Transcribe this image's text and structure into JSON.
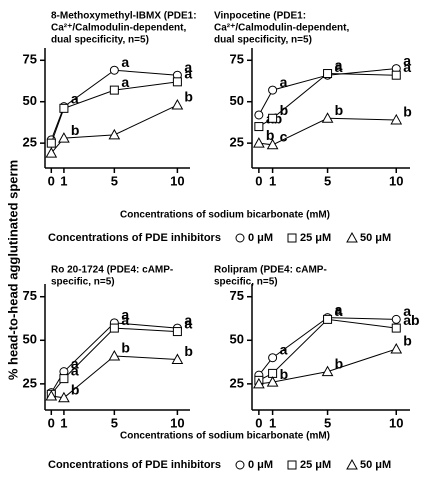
{
  "ylabel": "% head-to-head agglutinated sperm",
  "chart_data": [
    {
      "type": "line",
      "title_lines": [
        "8-Methoxymethyl-IBMX (PDE1:",
        "Ca²⁺/Calmodulin-dependent,",
        "dual specificity, n=5)"
      ],
      "x": [
        0,
        1,
        5,
        10
      ],
      "xlim": [
        -0.5,
        11
      ],
      "xticks": [
        0,
        1,
        5,
        10
      ],
      "ylim": [
        10,
        80
      ],
      "yticks": [
        25,
        50,
        75
      ],
      "xlabel": "Concentrations of sodium bicarbonate (mM)",
      "legend_title": "Concentrations of PDE inhibitors",
      "series": [
        {
          "name": "0 μM",
          "marker": "circle",
          "color": "#000000",
          "values": [
            27,
            47,
            69,
            66
          ],
          "letters": [
            null,
            "a",
            "a",
            "a"
          ]
        },
        {
          "name": "25 μM",
          "marker": "square",
          "color": "#000000",
          "values": [
            25,
            46,
            57,
            62
          ],
          "letters": [
            null,
            null,
            "a",
            "a"
          ]
        },
        {
          "name": "50 μM",
          "marker": "triangle",
          "color": "#000000",
          "values": [
            19,
            28,
            30,
            48
          ],
          "letters": [
            null,
            "b",
            null,
            "b"
          ]
        }
      ]
    },
    {
      "type": "line",
      "title_lines": [
        "Vinpocetine (PDE1:",
        "Ca²⁺/Calmodulin-dependent,",
        "dual specificity, n=5)"
      ],
      "x": [
        0,
        1,
        5,
        10
      ],
      "xlim": [
        -0.5,
        11
      ],
      "xticks": [
        0,
        1,
        5,
        10
      ],
      "ylim": [
        10,
        80
      ],
      "yticks": [
        25,
        50,
        75
      ],
      "series": [
        {
          "name": "0 μM",
          "marker": "circle",
          "color": "#000000",
          "values": [
            42,
            57,
            66,
            70
          ],
          "letters": [
            null,
            "a",
            "a",
            "a"
          ]
        },
        {
          "name": "25 μM",
          "marker": "square",
          "color": "#000000",
          "values": [
            35,
            40,
            67,
            66
          ],
          "letters": [
            "ab",
            "b",
            "a",
            "a"
          ]
        },
        {
          "name": "50 μM",
          "marker": "triangle",
          "color": "#000000",
          "values": [
            25,
            24,
            40,
            39
          ],
          "letters": [
            "b",
            "c",
            "b",
            "b"
          ]
        }
      ]
    },
    {
      "type": "line",
      "title_lines": [
        "Ro 20-1724 (PDE4: cAMP-",
        "specific,  n=5)"
      ],
      "x": [
        0,
        1,
        5,
        10
      ],
      "xlim": [
        -0.5,
        11
      ],
      "xticks": [
        0,
        1,
        5,
        10
      ],
      "ylim": [
        10,
        80
      ],
      "yticks": [
        25,
        50,
        75
      ],
      "xlabel": "Concentrations of sodium bicarbonate (mM)",
      "legend_title": "Concentrations of PDE inhibitors",
      "series": [
        {
          "name": "0 μM",
          "marker": "circle",
          "color": "#000000",
          "values": [
            20,
            32,
            60,
            57
          ],
          "letters": [
            null,
            "a",
            "a",
            "a"
          ]
        },
        {
          "name": "25 μM",
          "marker": "square",
          "color": "#000000",
          "values": [
            19,
            28,
            57,
            55
          ],
          "letters": [
            null,
            "a",
            "a",
            "a"
          ]
        },
        {
          "name": "50 μM",
          "marker": "triangle",
          "color": "#000000",
          "values": [
            18,
            17,
            41,
            39
          ],
          "letters": [
            null,
            "b",
            "b",
            "b"
          ]
        }
      ]
    },
    {
      "type": "line",
      "title_lines": [
        "Rolipram (PDE4: cAMP-",
        "specific, n=5)"
      ],
      "x": [
        0,
        1,
        5,
        10
      ],
      "xlim": [
        -0.5,
        11
      ],
      "xticks": [
        0,
        1,
        5,
        10
      ],
      "ylim": [
        10,
        80
      ],
      "yticks": [
        25,
        50,
        75
      ],
      "series": [
        {
          "name": "0 μM",
          "marker": "circle",
          "color": "#000000",
          "values": [
            30,
            40,
            63,
            62
          ],
          "letters": [
            null,
            "a",
            "a",
            "a"
          ]
        },
        {
          "name": "25 μM",
          "marker": "square",
          "color": "#000000",
          "values": [
            27,
            31,
            62,
            57
          ],
          "letters": [
            null,
            null,
            "a",
            "ab"
          ]
        },
        {
          "name": "50 μM",
          "marker": "triangle",
          "color": "#000000",
          "values": [
            25,
            26,
            32,
            45
          ],
          "letters": [
            null,
            "b",
            "b",
            "b"
          ]
        }
      ]
    }
  ]
}
